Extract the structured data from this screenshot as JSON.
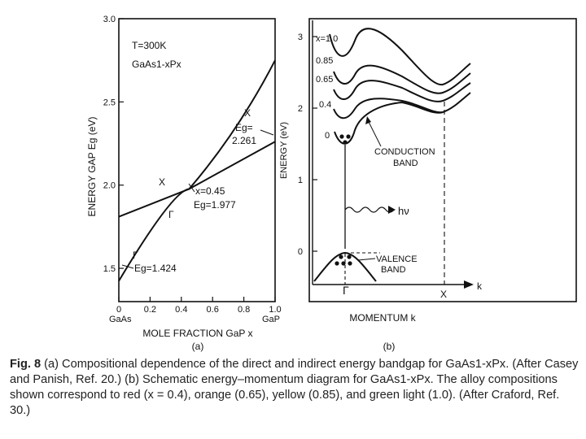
{
  "panel_a": {
    "y_axis_label": "ENERGY GAP Eg (eV)",
    "x_axis_label": "MOLE FRACTION GaP x",
    "sublabel": "(a)",
    "header_temp": "T=300K",
    "header_material": "GaAs1-xPx",
    "left_end_label": "GaAs",
    "right_end_label": "GaP",
    "y_ticks": [
      "1.5",
      "2.0",
      "2.5",
      "3.0"
    ],
    "x_ticks": [
      "0",
      "0.2",
      "0.4",
      "0.6",
      "0.8",
      "1.0"
    ],
    "curve_label_x": "X",
    "curve_label_gamma": "Γ",
    "ann_gamma_label": "Γ",
    "ann_gamma_value": "Eg=1.424",
    "ann_cross_x": "x=0.45",
    "ann_cross_eg": "Eg=1.977",
    "ann_x_label": "X",
    "ann_x_eg": "Eg=",
    "ann_x_value": "2.261"
  },
  "panel_b": {
    "y_axis_label": "ENERGY (eV)",
    "x_axis_label": "MOMENTUM k",
    "sublabel": "(b)",
    "y_ticks": [
      "0",
      "1",
      "2",
      "3"
    ],
    "curve_labels": [
      "x=1.0",
      "0.85",
      "0.65",
      "0.4",
      "0"
    ],
    "conduction_label_1": "CONDUCTION",
    "conduction_label_2": "BAND",
    "valence_label_1": "VALENCE",
    "valence_label_2": "BAND",
    "photon_label": "hν",
    "gamma_label": "Γ",
    "x_point_label": "X",
    "k_label": "k"
  },
  "chart_data": [
    {
      "type": "line",
      "x": [
        0,
        0.45,
        1.0
      ],
      "series": [
        {
          "name": "Γ",
          "values": [
            1.424,
            1.977,
            2.75
          ]
        },
        {
          "name": "X",
          "values": [
            1.81,
            1.977,
            2.261
          ]
        }
      ],
      "xlabel": "MOLE FRACTION GaP x",
      "ylabel": "ENERGY GAP Eg (eV)",
      "xlim": [
        0,
        1.0
      ],
      "ylim": [
        1.3,
        3.0
      ]
    }
  ],
  "caption": {
    "lead": "Fig. 8",
    "text": " (a) Compositional dependence of the direct and indirect energy bandgap for GaAs1-xPx. (After Casey and Panish, Ref. 20.) (b) Schematic energy–momentum diagram for GaAs1-xPx. The alloy compositions shown correspond to red (x = 0.4), orange (0.65), yellow (0.85), and green light (1.0). (After Craford, Ref. 30.)"
  }
}
